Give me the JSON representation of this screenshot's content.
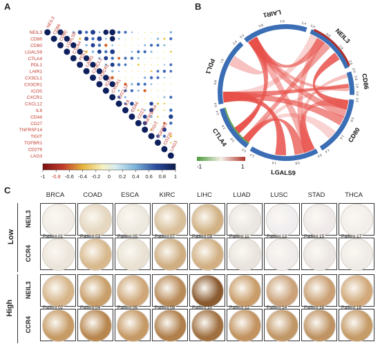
{
  "panels": {
    "a": "A",
    "b": "B",
    "c": "C"
  },
  "panel_a": {
    "genes": [
      "NEIL3",
      "CD86",
      "CD80",
      "LGALS9",
      "CTLA4",
      "PDL1",
      "LAIR1",
      "CX3CL1",
      "CX3CR1",
      "ICOS",
      "CXCR1",
      "CXCL12",
      "IL8",
      "CD44",
      "CD27",
      "TNFRSF14",
      "TIGIT",
      "TGFBR1",
      "CD276",
      "LAG3"
    ],
    "colorbar_ticks": [
      "-1",
      "-0.8",
      "-0.6",
      "-0.4",
      "-0.2",
      "0",
      "0.2",
      "0.4",
      "0.6",
      "0.8",
      "1"
    ],
    "colors": {
      "neg": "#8b1a1a",
      "mid": "#f3e24a",
      "pos": "#0d1f5c"
    }
  },
  "panel_b": {
    "genes": [
      "NEIL3",
      "CD86",
      "CD80",
      "LGALS9",
      "CTLA4",
      "PDL1",
      "LAIR1"
    ],
    "legend_ticks": [
      "-1",
      "1"
    ],
    "colors": {
      "ring": "#3b6eb5",
      "chord": "#e8504a"
    }
  },
  "panel_c": {
    "cancers": [
      "BRCA",
      "COAD",
      "ESCA",
      "KIRC",
      "LIHC",
      "LUAD",
      "LUSC",
      "STAD",
      "THCA"
    ],
    "groups": [
      {
        "name": "Low",
        "genes": [
          "NEIL3",
          "CCR4"
        ],
        "patients": [
          [
            "Patient 01",
            "Patient 03",
            "Patient 05",
            "Patient 07",
            "Patient 09",
            "Patient 11",
            "Patient 13",
            "Patient 15",
            "Patient 17"
          ]
        ]
      },
      {
        "name": "High",
        "genes": [
          "NEIL3",
          "CCR4"
        ],
        "patients": [
          [
            "Patient 02",
            "Patient 04",
            "Patient 06",
            "Patient 08",
            "Patient 10",
            "Patient 12",
            "Patient 14",
            "Patient 16",
            "Patient 18"
          ]
        ]
      }
    ]
  }
}
